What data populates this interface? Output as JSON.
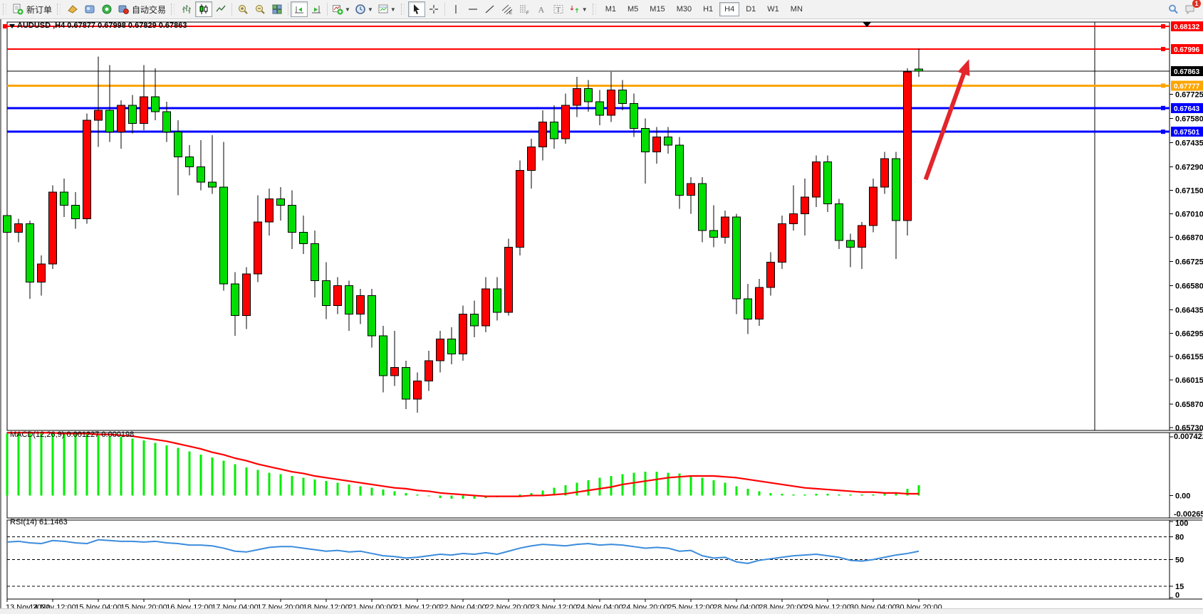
{
  "toolbar": {
    "new_order_label": "新订单",
    "autotrading_label": "自动交易",
    "notification_badge": "1",
    "timeframes": {
      "items": [
        "M1",
        "M5",
        "M15",
        "M30",
        "H1",
        "H4",
        "D1",
        "W1",
        "MN"
      ],
      "selected": "H4"
    }
  },
  "chart": {
    "title": "AUDUSD ,H4 0.67877 0.67998 0.67829 0.67863",
    "symbol": "AUDUSD",
    "period": "H4",
    "macd_label": "MACD(12,26,9) 0.001227 0.000198",
    "rsi_label": "RSI(14) 61.1463"
  },
  "chart_data": {
    "type": "candlestick",
    "symbol": "AUDUSD",
    "timeframe": "H4",
    "ohlc_display": {
      "open": "0.67877",
      "high": "0.67998",
      "low": "0.67829",
      "close": "0.67863"
    },
    "colors": {
      "up_candle": "#FF0000",
      "down_candle": "#00DD00",
      "wick": "#000000",
      "macd_histogram": "#00EE00",
      "macd_signal": "#FF0000",
      "rsi_line": "#3C8CDC",
      "arrow": "#E2262C",
      "level_red": "#FF0000",
      "level_orange": "#FFA500",
      "level_blue": "#0000FF",
      "price_line": "#000000"
    },
    "price_axis": {
      "top": 0.68132,
      "bottom": 0.6573,
      "ticks": [
        "0.67725",
        "0.67580",
        "0.67435",
        "0.67290",
        "0.67150",
        "0.67010",
        "0.66870",
        "0.66725",
        "0.66580",
        "0.66435",
        "0.66295",
        "0.66155",
        "0.66015",
        "0.65870",
        "0.65730"
      ]
    },
    "hlines": [
      {
        "price": 0.68132,
        "label": "0.68132",
        "color": "#FF0000",
        "width": 2,
        "right_handle": true,
        "left_handle": true
      },
      {
        "price": 0.67996,
        "label": "0.67996",
        "color": "#FF0000",
        "width": 2,
        "right_handle": true,
        "left_handle": false
      },
      {
        "price": 0.67777,
        "label": "0.67777",
        "color": "#FFA500",
        "width": 3,
        "right_handle": true,
        "left_handle": false
      },
      {
        "price": 0.67643,
        "label": "0.67643",
        "color": "#0000FF",
        "width": 3,
        "right_handle": true,
        "left_handle": false
      },
      {
        "price": 0.67501,
        "label": "0.67501",
        "color": "#0000FF",
        "width": 3,
        "right_handle": true,
        "left_handle": false
      }
    ],
    "current_price": {
      "price": 0.67863,
      "label": "0.67863",
      "color": "#000000"
    },
    "candles": [
      [
        0.67,
        0.6704,
        0.6675,
        0.669
      ],
      [
        0.669,
        0.6698,
        0.6684,
        0.6695
      ],
      [
        0.6695,
        0.6697,
        0.665,
        0.666
      ],
      [
        0.666,
        0.6676,
        0.6652,
        0.6671
      ],
      [
        0.6671,
        0.6718,
        0.6668,
        0.6714
      ],
      [
        0.6714,
        0.6722,
        0.6699,
        0.6706
      ],
      [
        0.6706,
        0.6714,
        0.6692,
        0.6698
      ],
      [
        0.6698,
        0.6761,
        0.6695,
        0.6757
      ],
      [
        0.6757,
        0.6795,
        0.6741,
        0.6763
      ],
      [
        0.6763,
        0.679,
        0.6744,
        0.675
      ],
      [
        0.675,
        0.6769,
        0.674,
        0.6766
      ],
      [
        0.6766,
        0.6772,
        0.6749,
        0.6755
      ],
      [
        0.6755,
        0.679,
        0.6751,
        0.6771
      ],
      [
        0.6771,
        0.6788,
        0.6757,
        0.6762
      ],
      [
        0.6762,
        0.6768,
        0.6744,
        0.675
      ],
      [
        0.675,
        0.6757,
        0.6712,
        0.6735
      ],
      [
        0.6735,
        0.6742,
        0.6724,
        0.6729
      ],
      [
        0.6729,
        0.6745,
        0.6715,
        0.672
      ],
      [
        0.672,
        0.6748,
        0.6713,
        0.6717
      ],
      [
        0.6717,
        0.6744,
        0.6655,
        0.6659
      ],
      [
        0.6659,
        0.6666,
        0.6628,
        0.664
      ],
      [
        0.664,
        0.6669,
        0.6632,
        0.6665
      ],
      [
        0.6665,
        0.6712,
        0.666,
        0.6696
      ],
      [
        0.6696,
        0.6716,
        0.6688,
        0.671
      ],
      [
        0.671,
        0.6717,
        0.6697,
        0.6706
      ],
      [
        0.6706,
        0.6715,
        0.668,
        0.669
      ],
      [
        0.669,
        0.67,
        0.6677,
        0.6683
      ],
      [
        0.6683,
        0.6691,
        0.6651,
        0.6661
      ],
      [
        0.6661,
        0.6672,
        0.6638,
        0.6646
      ],
      [
        0.6646,
        0.6663,
        0.6641,
        0.6658
      ],
      [
        0.6658,
        0.6661,
        0.6631,
        0.6641
      ],
      [
        0.6641,
        0.6656,
        0.6635,
        0.6652
      ],
      [
        0.6652,
        0.6656,
        0.6621,
        0.6628
      ],
      [
        0.6628,
        0.6634,
        0.6594,
        0.6604
      ],
      [
        0.6604,
        0.6631,
        0.6598,
        0.6609
      ],
      [
        0.6609,
        0.6613,
        0.6584,
        0.659
      ],
      [
        0.659,
        0.6606,
        0.6582,
        0.6601
      ],
      [
        0.6601,
        0.6619,
        0.6595,
        0.6613
      ],
      [
        0.6613,
        0.6631,
        0.6606,
        0.6626
      ],
      [
        0.6626,
        0.6633,
        0.6611,
        0.6617
      ],
      [
        0.6617,
        0.6646,
        0.6613,
        0.6641
      ],
      [
        0.6641,
        0.6649,
        0.6627,
        0.6634
      ],
      [
        0.6634,
        0.6663,
        0.663,
        0.6656
      ],
      [
        0.6656,
        0.6663,
        0.6637,
        0.6642
      ],
      [
        0.6642,
        0.6686,
        0.664,
        0.6681
      ],
      [
        0.6681,
        0.6733,
        0.6676,
        0.6727
      ],
      [
        0.6727,
        0.6746,
        0.6716,
        0.6741
      ],
      [
        0.6741,
        0.6763,
        0.6733,
        0.6756
      ],
      [
        0.6756,
        0.6766,
        0.674,
        0.6746
      ],
      [
        0.6746,
        0.6773,
        0.6743,
        0.6766
      ],
      [
        0.6766,
        0.6783,
        0.6759,
        0.6776
      ],
      [
        0.6776,
        0.6781,
        0.6762,
        0.6768
      ],
      [
        0.6768,
        0.6775,
        0.6754,
        0.676
      ],
      [
        0.676,
        0.6786,
        0.6756,
        0.6775
      ],
      [
        0.6775,
        0.6781,
        0.6763,
        0.6767
      ],
      [
        0.6767,
        0.6773,
        0.6747,
        0.6752
      ],
      [
        0.6752,
        0.6758,
        0.6719,
        0.6738
      ],
      [
        0.6738,
        0.6753,
        0.6731,
        0.6747
      ],
      [
        0.6747,
        0.6753,
        0.6737,
        0.6742
      ],
      [
        0.6742,
        0.6747,
        0.6704,
        0.6712
      ],
      [
        0.6712,
        0.6723,
        0.6701,
        0.6719
      ],
      [
        0.6719,
        0.6723,
        0.6684,
        0.6691
      ],
      [
        0.6691,
        0.6706,
        0.6681,
        0.6687
      ],
      [
        0.6687,
        0.6703,
        0.6683,
        0.6699
      ],
      [
        0.6699,
        0.6701,
        0.6641,
        0.665
      ],
      [
        0.665,
        0.6659,
        0.6629,
        0.6638
      ],
      [
        0.6638,
        0.6662,
        0.6634,
        0.6657
      ],
      [
        0.6657,
        0.6678,
        0.6652,
        0.6672
      ],
      [
        0.6672,
        0.67,
        0.6668,
        0.6695
      ],
      [
        0.6695,
        0.6718,
        0.6691,
        0.6701
      ],
      [
        0.6701,
        0.6722,
        0.6688,
        0.6711
      ],
      [
        0.6711,
        0.6736,
        0.6705,
        0.6732
      ],
      [
        0.6732,
        0.6736,
        0.6702,
        0.6707
      ],
      [
        0.6707,
        0.671,
        0.668,
        0.6685
      ],
      [
        0.6685,
        0.6689,
        0.6669,
        0.6681
      ],
      [
        0.6681,
        0.6696,
        0.6668,
        0.6694
      ],
      [
        0.6694,
        0.6722,
        0.669,
        0.6717
      ],
      [
        0.6717,
        0.6738,
        0.6713,
        0.6734
      ],
      [
        0.6734,
        0.6738,
        0.6674,
        0.6697
      ],
      [
        0.6697,
        0.6788,
        0.6688,
        0.6786
      ],
      [
        0.67877,
        0.67998,
        0.67829,
        0.67863
      ]
    ],
    "time_labels": [
      "13 Nov 2022",
      "14 Nov 12:00",
      "15 Nov 04:00",
      "15 Nov 20:00",
      "16 Nov 12:00",
      "17 Nov 04:00",
      "17 Nov 20:00",
      "18 Nov 12:00",
      "21 Nov 00:00",
      "21 Nov 12:00",
      "22 Nov 04:00",
      "22 Nov 20:00",
      "23 Nov 12:00",
      "24 Nov 04:00",
      "24 Nov 20:00",
      "25 Nov 12:00",
      "28 Nov 04:00",
      "28 Nov 20:00",
      "29 Nov 12:00",
      "30 Nov 04:00",
      "30 Nov 20:00"
    ],
    "macd": {
      "params": "12,26,9",
      "macd_value": "0.001227",
      "signal_value": "0.000198",
      "axis_top_label": "0.007422",
      "axis_zero_label": "0.00",
      "axis_bottom_label": "-0.002651",
      "axis_top": 0.007422,
      "axis_bottom": -0.002651,
      "scale": 0.0001,
      "histogram": [
        73,
        74,
        74,
        74,
        73,
        73,
        72,
        72,
        71,
        70,
        69,
        67,
        65,
        62,
        59,
        56,
        52,
        48,
        45,
        41,
        37,
        33,
        30,
        27,
        25,
        23,
        21,
        19,
        17,
        15,
        13,
        11,
        9,
        7,
        5,
        3,
        1,
        -1,
        -3,
        -4,
        -4,
        -4,
        -3,
        -2,
        -1,
        1,
        3,
        6,
        9,
        12,
        15,
        18,
        21,
        23,
        25,
        27,
        28,
        28,
        27,
        26,
        24,
        21,
        18,
        15,
        11,
        8,
        5,
        3,
        2,
        1,
        1,
        2,
        2,
        1,
        1,
        1,
        1,
        2,
        3,
        8,
        12
      ],
      "signal": [
        74,
        74,
        74,
        74,
        74,
        73,
        73,
        73,
        72,
        72,
        71,
        70,
        68,
        66,
        64,
        61,
        58,
        55,
        51,
        48,
        44,
        41,
        37,
        34,
        31,
        28,
        26,
        23,
        21,
        19,
        17,
        15,
        13,
        11,
        9,
        8,
        6,
        5,
        3,
        2,
        1,
        0,
        -1,
        -1,
        -1,
        -1,
        0,
        0,
        1,
        2,
        4,
        6,
        8,
        10,
        13,
        15,
        17,
        19,
        21,
        22,
        23,
        23,
        23,
        22,
        21,
        19,
        17,
        15,
        13,
        11,
        9,
        8,
        7,
        6,
        5,
        4,
        4,
        3,
        3,
        2,
        2
      ]
    },
    "rsi": {
      "period": "14",
      "value": "61.1463",
      "levels": [
        80,
        50,
        15
      ],
      "axis_labels": [
        "100",
        "80",
        "50",
        "15",
        "0"
      ],
      "axis_values": [
        100,
        80,
        50,
        15,
        0
      ],
      "values": [
        73,
        74,
        72,
        71,
        75,
        74,
        72,
        71,
        76,
        75,
        74,
        74,
        73,
        74,
        72,
        71,
        69,
        69,
        68,
        65,
        61,
        60,
        63,
        66,
        67,
        67,
        65,
        63,
        61,
        62,
        60,
        61,
        58,
        55,
        54,
        52,
        53,
        55,
        57,
        56,
        58,
        57,
        59,
        57,
        61,
        65,
        68,
        70,
        69,
        68,
        70,
        71,
        69,
        70,
        69,
        67,
        65,
        66,
        65,
        61,
        62,
        55,
        52,
        53,
        47,
        45,
        49,
        51,
        53,
        55,
        56,
        57,
        55,
        53,
        49,
        48,
        50,
        53,
        56,
        58,
        61
      ]
    },
    "arrow": {
      "color": "#E2262C",
      "from_bar": 80.6,
      "from_price": 0.67215,
      "to_bar": 84.4,
      "to_price": 0.67935
    },
    "vertical_line_bar": 95.45,
    "shift_marker_bar": 75.45
  }
}
